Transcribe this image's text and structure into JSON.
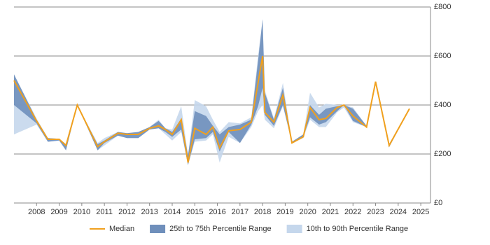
{
  "chart_data": {
    "type": "line",
    "x": [
      2007.0,
      2008.0,
      2008.5,
      2009.0,
      2009.3,
      2009.8,
      2010.7,
      2011.0,
      2011.6,
      2012.0,
      2012.5,
      2013.0,
      2013.4,
      2013.7,
      2014.0,
      2014.4,
      2014.7,
      2015.0,
      2015.5,
      2015.8,
      2016.1,
      2016.5,
      2017.0,
      2017.5,
      2017.8,
      2018.0,
      2018.1,
      2018.5,
      2018.9,
      2019.3,
      2019.8,
      2020.1,
      2020.5,
      2020.8,
      2021.3,
      2021.6,
      2022.0,
      2022.6,
      2023.0,
      2023.6,
      2024.5
    ],
    "series": [
      {
        "name": "Median",
        "color": "#f0a01e",
        "values": [
          500,
          335,
          260,
          260,
          235,
          400,
          230,
          250,
          285,
          280,
          280,
          305,
          315,
          300,
          280,
          340,
          165,
          305,
          280,
          310,
          225,
          295,
          300,
          330,
          490,
          600,
          370,
          330,
          440,
          245,
          270,
          390,
          340,
          345,
          390,
          400,
          355,
          310,
          495,
          235,
          385
        ]
      }
    ],
    "bands": [
      {
        "name": "25th to 75th Percentile Range",
        "color": "#6f8fbb",
        "lower": [
          400,
          325,
          250,
          255,
          215,
          400,
          215,
          245,
          275,
          265,
          265,
          300,
          305,
          290,
          270,
          300,
          155,
          260,
          265,
          290,
          210,
          290,
          245,
          320,
          395,
          470,
          360,
          315,
          400,
          245,
          270,
          350,
          320,
          330,
          375,
          400,
          335,
          310,
          495,
          228,
          385
        ],
        "upper": [
          525,
          340,
          265,
          262,
          240,
          400,
          240,
          255,
          290,
          285,
          290,
          310,
          335,
          305,
          290,
          345,
          195,
          375,
          355,
          315,
          280,
          310,
          320,
          340,
          580,
          750,
          450,
          340,
          470,
          250,
          280,
          400,
          360,
          385,
          395,
          400,
          385,
          315,
          495,
          240,
          385
        ]
      },
      {
        "name": "10th to 90th Percentile Range",
        "color": "#c5d7ec",
        "lower": [
          280,
          320,
          250,
          255,
          215,
          400,
          215,
          235,
          275,
          265,
          265,
          300,
          305,
          280,
          255,
          290,
          155,
          250,
          255,
          280,
          165,
          270,
          245,
          310,
          375,
          400,
          340,
          305,
          395,
          245,
          265,
          340,
          310,
          310,
          370,
          390,
          330,
          310,
          495,
          228,
          385
        ],
        "upper": [
          525,
          345,
          265,
          262,
          240,
          400,
          245,
          265,
          290,
          285,
          290,
          310,
          340,
          305,
          300,
          395,
          195,
          420,
          395,
          340,
          290,
          330,
          325,
          350,
          600,
          750,
          460,
          345,
          490,
          250,
          280,
          450,
          390,
          405,
          400,
          400,
          390,
          315,
          495,
          240,
          385
        ]
      }
    ],
    "xlim": [
      2007.0,
      2025.43
    ],
    "xticks": [
      2008,
      2009,
      2010,
      2011,
      2012,
      2013,
      2014,
      2015,
      2016,
      2017,
      2018,
      2019,
      2020,
      2021,
      2022,
      2023,
      2024,
      2025
    ],
    "ylim": [
      0,
      800
    ],
    "yticks": [
      {
        "value": 0,
        "label": "£0"
      },
      {
        "value": 200,
        "label": "£200"
      },
      {
        "value": 400,
        "label": "£400"
      },
      {
        "value": 600,
        "label": "£600"
      },
      {
        "value": 800,
        "label": "£800"
      }
    ],
    "grid": true
  }
}
